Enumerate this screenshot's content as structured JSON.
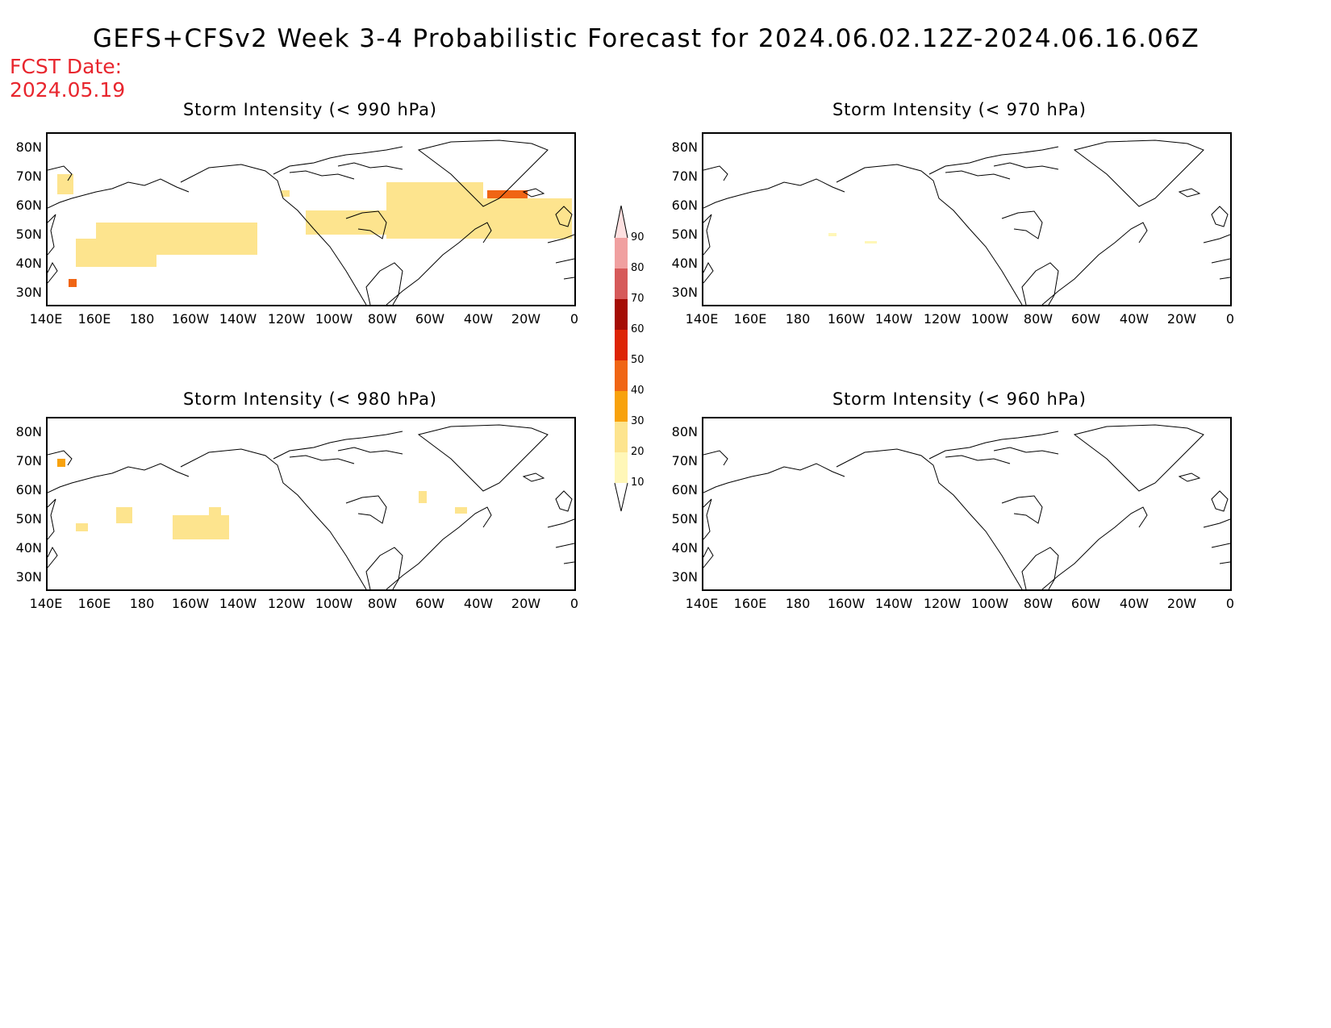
{
  "header": {
    "title": "GEFS+CFSv2 Week 3-4 Probabilistic Forecast for 2024.06.02.12Z-2024.06.16.06Z",
    "fcst_label": "FCST Date:",
    "fcst_date": "2024.05.19"
  },
  "panels": [
    {
      "title": "Storm Intensity (< 990 hPa)"
    },
    {
      "title": "Storm Intensity (< 970 hPa)"
    },
    {
      "title": "Storm Intensity (< 980 hPa)"
    },
    {
      "title": "Storm Intensity (< 960 hPa)"
    }
  ],
  "axes": {
    "lat_labels": [
      "80N",
      "70N",
      "60N",
      "50N",
      "40N",
      "30N"
    ],
    "lon_labels": [
      "140E",
      "160E",
      "180",
      "160W",
      "140W",
      "120W",
      "100W",
      "80W",
      "60W",
      "40W",
      "20W",
      "0"
    ]
  },
  "colorbar": {
    "levels": [
      "10",
      "20",
      "30",
      "40",
      "50",
      "60",
      "70",
      "80",
      "90"
    ],
    "colors": [
      "#fff7b8",
      "#fde48e",
      "#f8a20c",
      "#f06514",
      "#dd2405",
      "#a50c05",
      "#d65a5a",
      "#f0a0a0",
      "#fde0e0"
    ]
  }
}
